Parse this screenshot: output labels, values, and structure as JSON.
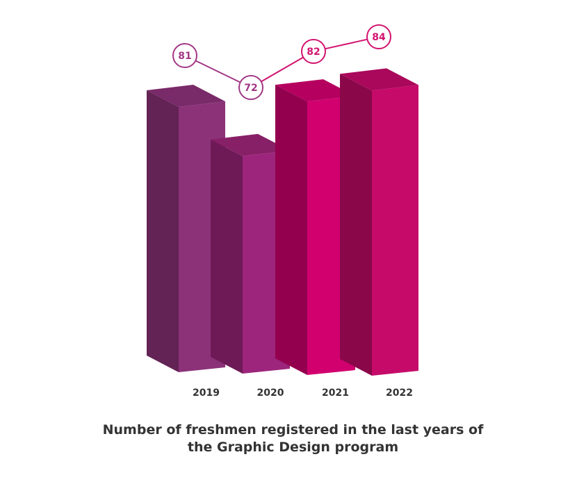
{
  "chart_data": {
    "type": "bar",
    "title": [
      "Number of freshmen registered in the last years of",
      "the Graphic Design program"
    ],
    "categories": [
      "2019",
      "2020",
      "2021",
      "2022"
    ],
    "values": [
      81,
      72,
      82,
      84
    ],
    "colors": {
      "front": [
        "#8b3279",
        "#9d257c",
        "#d2006f",
        "#c60a6a"
      ],
      "side": [
        "#632355",
        "#6e1a57",
        "#93004e",
        "#8a074a"
      ],
      "top": [
        "#792a69",
        "#882067",
        "#b5005f",
        "#aa085b"
      ],
      "marker": [
        "#a23786",
        "#a23786",
        "#d2136f",
        "#d2136f"
      ]
    }
  }
}
